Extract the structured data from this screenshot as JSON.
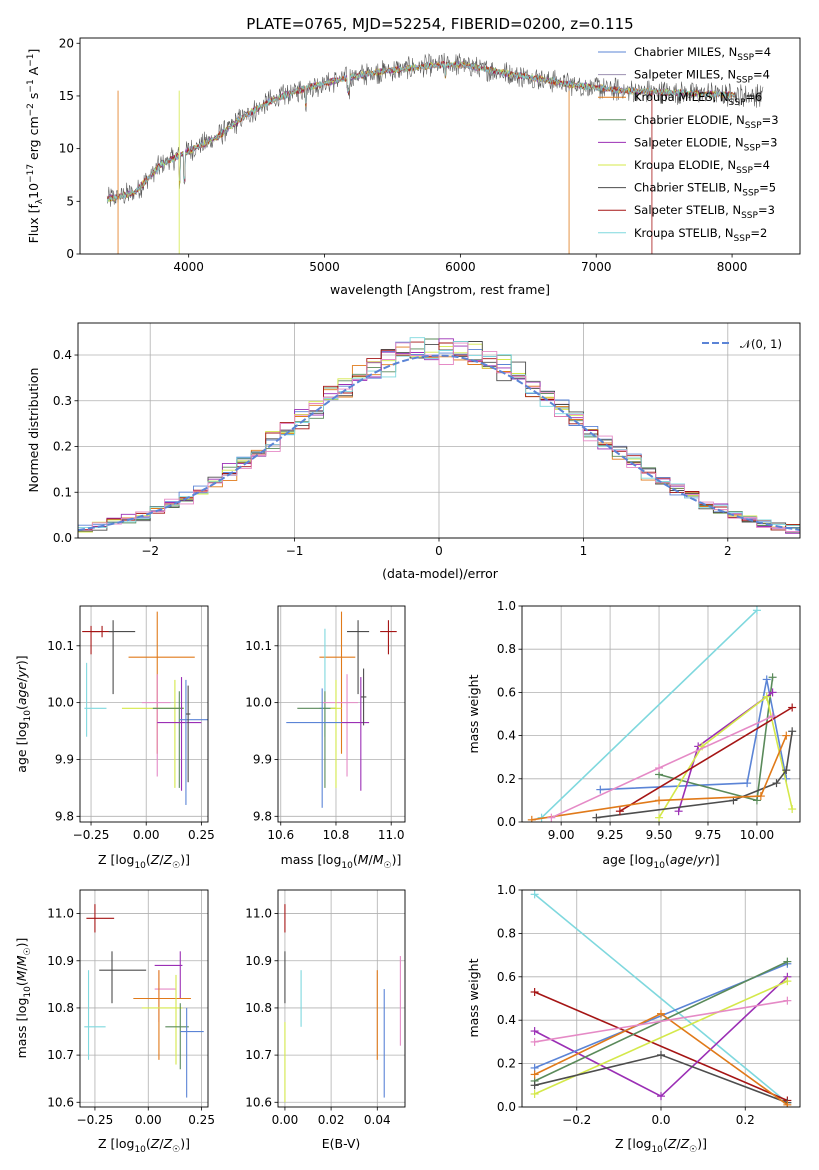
{
  "figure_title": "PLATE=0765, MJD=52254, FIBERID=0200, z=0.115",
  "colors": {
    "chabrier_miles": "#5b84d6",
    "salpeter_miles": "#9b8fb0",
    "kroupa_miles": "#e07a1a",
    "chabrier_elodie": "#5a8a5a",
    "salpeter_elodie": "#9b2fb5",
    "kroupa_elodie": "#d4e84a",
    "chabrier_stelib": "#4d4d4d",
    "salpeter_stelib": "#a51515",
    "kroupa_stelib": "#7fd8de",
    "pink": "#e58ac6",
    "gaussian": "#5b84d6"
  },
  "chart_data": [
    {
      "type": "line",
      "panel": "spectrum",
      "xlabel": "wavelength [Angstrom, rest frame]",
      "ylabel": "Flux [f_λ 10^-17 erg cm^-2 s^-1 A^-1]",
      "xlim": [
        3200,
        8500
      ],
      "ylim": [
        0,
        20.5
      ],
      "xticks": [
        4000,
        5000,
        6000,
        7000,
        8000
      ],
      "yticks": [
        0,
        5,
        10,
        15,
        20
      ],
      "legend_position": "top-right",
      "series": [
        {
          "name": "Chabrier MILES, N_SSP=4",
          "key": "chabrier_miles"
        },
        {
          "name": "Salpeter MILES, N_SSP=4",
          "key": "salpeter_miles"
        },
        {
          "name": "Kroupa MILES, N_SSP=6",
          "key": "kroupa_miles"
        },
        {
          "name": "Chabrier ELODIE, N_SSP=3",
          "key": "chabrier_elodie"
        },
        {
          "name": "Salpeter ELODIE, N_SSP=3",
          "key": "salpeter_elodie"
        },
        {
          "name": "Kroupa ELODIE, N_SSP=4",
          "key": "kroupa_elodie"
        },
        {
          "name": "Chabrier STELIB, N_SSP=5",
          "key": "chabrier_stelib"
        },
        {
          "name": "Salpeter STELIB, N_SSP=3",
          "key": "salpeter_stelib"
        },
        {
          "name": "Kroupa STELIB, N_SSP=2",
          "key": "kroupa_stelib"
        }
      ],
      "continuum": {
        "x": [
          3400,
          3600,
          3800,
          4000,
          4200,
          4400,
          4600,
          4800,
          5000,
          5200,
          5400,
          5600,
          5800,
          6000,
          6200,
          6400,
          6600,
          6800,
          7000,
          7200,
          7400,
          7600,
          7800,
          8000,
          8200
        ],
        "y": [
          5.2,
          5.8,
          8.5,
          9.8,
          11.0,
          13.0,
          14.5,
          15.5,
          16.2,
          16.8,
          17.3,
          17.6,
          17.9,
          18.0,
          17.5,
          17.0,
          16.6,
          16.1,
          15.8,
          15.5,
          15.4,
          15.3,
          15.2,
          15.1,
          15.0
        ]
      }
    },
    {
      "type": "bar",
      "panel": "residual_histogram",
      "xlabel": "(data-model)/error",
      "ylabel": "Normed distribution",
      "xlim": [
        -2.5,
        2.5
      ],
      "ylim": [
        0,
        0.47
      ],
      "xticks": [
        -2,
        -1,
        0,
        1,
        2
      ],
      "yticks": [
        0.0,
        0.1,
        0.2,
        0.3,
        0.4
      ],
      "legend": "𝒩(0, 1)",
      "legend_position": "top-right",
      "bin_width": 0.1
    },
    {
      "type": "scatter",
      "panel": "age_vs_Z",
      "xlabel": "Z [log10(Z/Z☉)]",
      "ylabel": "age  [log10(age/yr)]",
      "xlim": [
        -0.3,
        0.28
      ],
      "ylim": [
        9.79,
        10.17
      ],
      "xticks": [
        -0.25,
        0.0,
        0.25
      ],
      "yticks": [
        9.8,
        9.9,
        10.0,
        10.1
      ],
      "points": [
        {
          "key": "salpeter_stelib",
          "x": -0.25,
          "y": 10.125,
          "xerr": [
            0.04,
            0.04
          ],
          "yerr": [
            0.04,
            0.01
          ]
        },
        {
          "key": "salpeter_stelib",
          "x": -0.2,
          "y": 10.125,
          "xerr": [
            0.05,
            0.05
          ],
          "yerr": [
            0.01,
            0.01
          ]
        },
        {
          "key": "chabrier_stelib",
          "x": -0.15,
          "y": 10.125,
          "xerr": [
            0.02,
            0.1
          ],
          "yerr": [
            0.11,
            0.02
          ]
        },
        {
          "key": "kroupa_stelib",
          "x": -0.27,
          "y": 9.99,
          "xerr": [
            0.01,
            0.09
          ],
          "yerr": [
            0.05,
            0.08
          ]
        },
        {
          "key": "kroupa_miles",
          "x": 0.05,
          "y": 10.08,
          "xerr": [
            0.13,
            0.17
          ],
          "yerr": [
            0.17,
            0.08
          ]
        },
        {
          "key": "pink",
          "x": 0.05,
          "y": 10.0,
          "xerr": [
            0.07,
            0.06
          ],
          "yerr": [
            0.13,
            0.05
          ]
        },
        {
          "key": "kroupa_elodie",
          "x": 0.13,
          "y": 9.99,
          "xerr": [
            0.24,
            0.04
          ],
          "yerr": [
            0.14,
            0.05
          ]
        },
        {
          "key": "chabrier_elodie",
          "x": 0.15,
          "y": 9.99,
          "xerr": [
            0.12,
            0.02
          ],
          "yerr": [
            0.14,
            0.03
          ]
        },
        {
          "key": "salpeter_elodie",
          "x": 0.16,
          "y": 9.965,
          "xerr": [
            0.11,
            0.09
          ],
          "yerr": [
            0.12,
            0.08
          ]
        },
        {
          "key": "chabrier_miles",
          "x": 0.18,
          "y": 9.97,
          "xerr": [
            0.03,
            0.1
          ],
          "yerr": [
            0.15,
            0.07
          ]
        },
        {
          "key": "chabrier_stelib",
          "x": 0.19,
          "y": 9.98,
          "xerr": [
            0.01,
            0.01
          ],
          "yerr": [
            0.12,
            0.05
          ]
        }
      ]
    },
    {
      "type": "scatter",
      "panel": "age_vs_mass",
      "xlabel": "mass [log10(M/M☉)]",
      "ylabel": "",
      "xlim": [
        10.59,
        11.05
      ],
      "ylim": [
        9.79,
        10.17
      ],
      "xticks": [
        10.6,
        10.8,
        11.0
      ],
      "yticks": [
        9.8,
        9.9,
        10.0,
        10.1
      ],
      "points": [
        {
          "key": "salpeter_stelib",
          "x": 10.99,
          "y": 10.125,
          "xerr": [
            0.03,
            0.03
          ],
          "yerr": [
            0.04,
            0.02
          ]
        },
        {
          "key": "chabrier_stelib",
          "x": 10.88,
          "y": 10.125,
          "xerr": [
            0.04,
            0.04
          ],
          "yerr": [
            0.11,
            0.02
          ]
        },
        {
          "key": "kroupa_miles",
          "x": 10.82,
          "y": 10.08,
          "xerr": [
            0.08,
            0.05
          ],
          "yerr": [
            0.17,
            0.08
          ]
        },
        {
          "key": "kroupa_stelib",
          "x": 10.76,
          "y": 9.99,
          "xerr": [
            0.02,
            0.02
          ],
          "yerr": [
            0.05,
            0.14
          ]
        },
        {
          "key": "chabrier_elodie",
          "x": 10.76,
          "y": 9.99,
          "xerr": [
            0.1,
            0.04
          ],
          "yerr": [
            0.14,
            0.03
          ]
        },
        {
          "key": "pink",
          "x": 10.84,
          "y": 10.0,
          "xerr": [
            0.09,
            0.04
          ],
          "yerr": [
            0.13,
            0.05
          ]
        },
        {
          "key": "kroupa_elodie",
          "x": 10.8,
          "y": 9.99,
          "xerr": [
            0.02,
            0.02
          ],
          "yerr": [
            0.14,
            0.05
          ]
        },
        {
          "key": "chabrier_miles",
          "x": 10.75,
          "y": 9.965,
          "xerr": [
            0.13,
            0.07
          ],
          "yerr": [
            0.15,
            0.06
          ]
        },
        {
          "key": "salpeter_elodie",
          "x": 10.89,
          "y": 9.965,
          "xerr": [
            0.07,
            0.03
          ],
          "yerr": [
            0.12,
            0.08
          ]
        },
        {
          "key": "chabrier_stelib",
          "x": 10.9,
          "y": 10.01,
          "xerr": [
            0.01,
            0.01
          ],
          "yerr": [
            0.05,
            0.05
          ]
        }
      ]
    },
    {
      "type": "line",
      "panel": "massweight_vs_age",
      "xlabel": "age  [log10(age/yr)]",
      "ylabel": "mass weight",
      "xlim": [
        8.8,
        10.22
      ],
      "ylim": [
        0,
        1.0
      ],
      "xticks": [
        9.0,
        9.25,
        9.5,
        9.75,
        10.0
      ],
      "yticks": [
        0.0,
        0.2,
        0.4,
        0.6,
        0.8,
        1.0
      ],
      "series": [
        {
          "key": "kroupa_stelib",
          "x": [
            8.9,
            10.0
          ],
          "y": [
            0.02,
            0.98
          ]
        },
        {
          "key": "chabrier_miles",
          "x": [
            9.2,
            9.95,
            10.05,
            10.15
          ],
          "y": [
            0.15,
            0.18,
            0.66,
            0.2
          ]
        },
        {
          "key": "chabrier_elodie",
          "x": [
            9.5,
            10.0,
            10.08
          ],
          "y": [
            0.22,
            0.1,
            0.67
          ]
        },
        {
          "key": "salpeter_elodie",
          "x": [
            9.6,
            9.7,
            10.08
          ],
          "y": [
            0.05,
            0.35,
            0.6
          ]
        },
        {
          "key": "kroupa_elodie",
          "x": [
            9.5,
            9.72,
            10.05,
            10.18
          ],
          "y": [
            0.02,
            0.35,
            0.58,
            0.06
          ]
        },
        {
          "key": "chabrier_stelib",
          "x": [
            9.18,
            9.88,
            10.1,
            10.15,
            10.18
          ],
          "y": [
            0.02,
            0.1,
            0.18,
            0.24,
            0.42
          ]
        },
        {
          "key": "salpeter_stelib",
          "x": [
            9.3,
            10.18
          ],
          "y": [
            0.05,
            0.53
          ]
        },
        {
          "key": "kroupa_miles",
          "x": [
            8.85,
            9.5,
            10.02,
            10.15
          ],
          "y": [
            0.01,
            0.1,
            0.12,
            0.4
          ]
        },
        {
          "key": "pink",
          "x": [
            8.95,
            9.5,
            10.08
          ],
          "y": [
            0.02,
            0.25,
            0.49
          ]
        }
      ]
    },
    {
      "type": "scatter",
      "panel": "mass_vs_Z",
      "xlabel": "Z [log10(Z/Z☉)]",
      "ylabel": "mass [log10(M/M☉)]",
      "xlim": [
        -0.32,
        0.28
      ],
      "ylim": [
        10.59,
        11.05
      ],
      "xticks": [
        -0.25,
        0.0,
        0.25
      ],
      "yticks": [
        10.6,
        10.7,
        10.8,
        10.9,
        11.0
      ],
      "points": [
        {
          "key": "salpeter_stelib",
          "x": -0.25,
          "y": 10.99,
          "xerr": [
            0.04,
            0.09
          ],
          "yerr": [
            0.03,
            0.03
          ]
        },
        {
          "key": "chabrier_stelib",
          "x": -0.17,
          "y": 10.88,
          "xerr": [
            0.06,
            0.16
          ],
          "yerr": [
            0.07,
            0.04
          ]
        },
        {
          "key": "kroupa_stelib",
          "x": -0.28,
          "y": 10.76,
          "xerr": [
            0.02,
            0.08
          ],
          "yerr": [
            0.07,
            0.12
          ]
        },
        {
          "key": "salpeter_elodie",
          "x": 0.15,
          "y": 10.89,
          "xerr": [
            0.12,
            0.01
          ],
          "yerr": [
            0.07,
            0.03
          ]
        },
        {
          "key": "pink",
          "x": 0.05,
          "y": 10.84,
          "xerr": [
            0.02,
            0.08
          ],
          "yerr": [
            0.07,
            0.04
          ]
        },
        {
          "key": "kroupa_miles",
          "x": 0.05,
          "y": 10.82,
          "xerr": [
            0.12,
            0.15
          ],
          "yerr": [
            0.13,
            0.06
          ]
        },
        {
          "key": "kroupa_elodie",
          "x": 0.13,
          "y": 10.8,
          "xerr": [
            0.16,
            0.03
          ],
          "yerr": [
            0.12,
            0.07
          ]
        },
        {
          "key": "chabrier_elodie",
          "x": 0.15,
          "y": 10.76,
          "xerr": [
            0.07,
            0.04
          ],
          "yerr": [
            0.09,
            0.05
          ]
        },
        {
          "key": "chabrier_miles",
          "x": 0.18,
          "y": 10.75,
          "xerr": [
            0.03,
            0.08
          ],
          "yerr": [
            0.14,
            0.05
          ]
        }
      ]
    },
    {
      "type": "scatter",
      "panel": "mass_vs_ebv",
      "xlabel": "E(B-V)",
      "ylabel": "",
      "xlim": [
        -0.003,
        0.052
      ],
      "ylim": [
        10.59,
        11.05
      ],
      "xticks": [
        0.0,
        0.02,
        0.04
      ],
      "yticks": [
        10.6,
        10.7,
        10.8,
        10.9,
        11.0
      ],
      "points": [
        {
          "key": "salpeter_stelib",
          "x": 0.0,
          "y": 10.99,
          "yerr": [
            0.03,
            0.03
          ]
        },
        {
          "key": "chabrier_stelib",
          "x": 0.0,
          "y": 10.88,
          "yerr": [
            0.07,
            0.04
          ]
        },
        {
          "key": "kroupa_elodie",
          "x": 0.0,
          "y": 10.7,
          "yerr": [
            0.1,
            0.07
          ]
        },
        {
          "key": "kroupa_stelib",
          "x": 0.007,
          "y": 10.82,
          "yerr": [
            0.06,
            0.06
          ]
        },
        {
          "key": "kroupa_miles",
          "x": 0.04,
          "y": 10.82,
          "yerr": [
            0.13,
            0.06
          ]
        },
        {
          "key": "chabrier_miles",
          "x": 0.043,
          "y": 10.75,
          "yerr": [
            0.14,
            0.09
          ]
        },
        {
          "key": "pink",
          "x": 0.05,
          "y": 10.82,
          "yerr": [
            0.1,
            0.09
          ]
        }
      ]
    },
    {
      "type": "line",
      "panel": "massweight_vs_Z",
      "xlabel": "Z [log10(Z/Z☉)]",
      "ylabel": "mass weight",
      "xlim": [
        -0.33,
        0.33
      ],
      "ylim": [
        0,
        1.0
      ],
      "xticks": [
        -0.2,
        0.0,
        0.2
      ],
      "yticks": [
        0.0,
        0.2,
        0.4,
        0.6,
        0.8,
        1.0
      ],
      "series": [
        {
          "key": "kroupa_stelib",
          "x": [
            -0.3,
            0.3
          ],
          "y": [
            0.98,
            0.02
          ]
        },
        {
          "key": "salpeter_stelib",
          "x": [
            -0.3,
            0.3
          ],
          "y": [
            0.53,
            0.03
          ]
        },
        {
          "key": "salpeter_elodie",
          "x": [
            -0.3,
            0.0,
            0.3
          ],
          "y": [
            0.35,
            0.05,
            0.6
          ]
        },
        {
          "key": "chabrier_miles",
          "x": [
            -0.3,
            0.3
          ],
          "y": [
            0.18,
            0.66
          ]
        },
        {
          "key": "chabrier_elodie",
          "x": [
            -0.3,
            0.3
          ],
          "y": [
            0.12,
            0.67
          ]
        },
        {
          "key": "kroupa_elodie",
          "x": [
            -0.3,
            0.3
          ],
          "y": [
            0.06,
            0.58
          ]
        },
        {
          "key": "chabrier_stelib",
          "x": [
            -0.3,
            0.0,
            0.3
          ],
          "y": [
            0.1,
            0.24,
            0.02
          ]
        },
        {
          "key": "kroupa_miles",
          "x": [
            -0.3,
            0.0,
            0.3
          ],
          "y": [
            0.15,
            0.43,
            0.01
          ]
        },
        {
          "key": "pink",
          "x": [
            -0.3,
            0.3
          ],
          "y": [
            0.3,
            0.49
          ]
        }
      ]
    }
  ]
}
